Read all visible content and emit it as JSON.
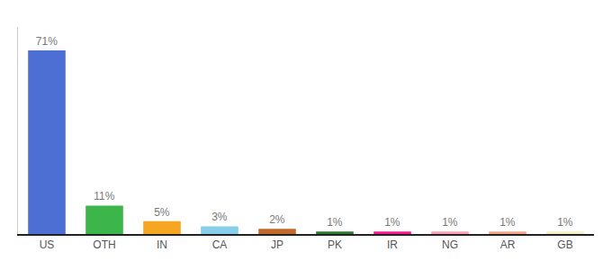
{
  "chart_data": {
    "type": "bar",
    "categories": [
      "US",
      "OTH",
      "IN",
      "CA",
      "JP",
      "PK",
      "IR",
      "NG",
      "AR",
      "GB"
    ],
    "values": [
      71,
      11,
      5,
      3,
      2,
      1,
      1,
      1,
      1,
      1
    ],
    "value_labels": [
      "71%",
      "11%",
      "5%",
      "3%",
      "2%",
      "1%",
      "1%",
      "1%",
      "1%",
      "1%"
    ],
    "colors": [
      "#4d6fd4",
      "#3cb54a",
      "#f5a623",
      "#87ceeb",
      "#c0692a",
      "#2d7a2d",
      "#ff1493",
      "#ff9eb5",
      "#f4a585",
      "#f5f0c0"
    ],
    "ylim": [
      0,
      80
    ],
    "data_labels": true,
    "tick_labels": "x",
    "grid": false
  }
}
